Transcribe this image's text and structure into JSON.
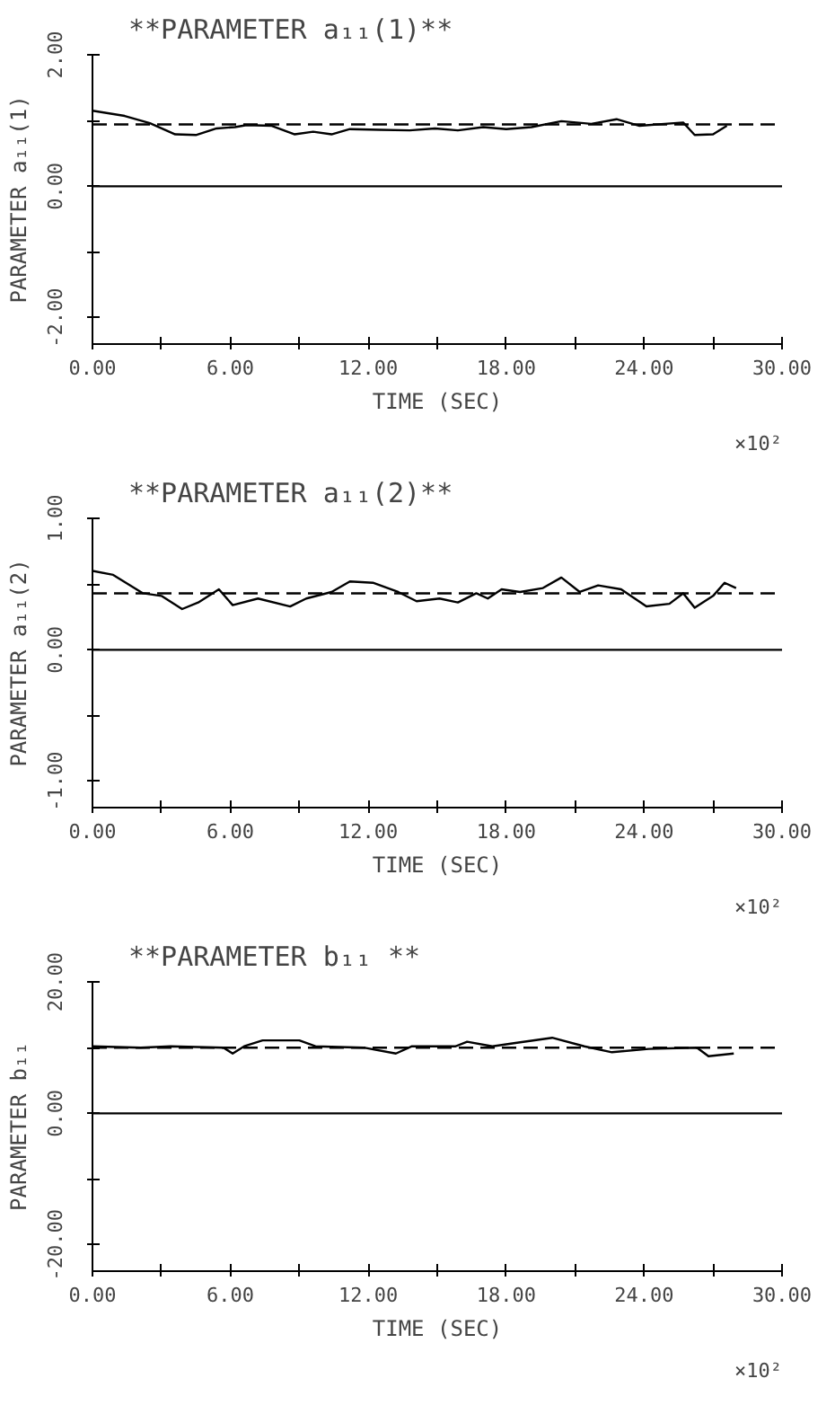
{
  "chart_data": [
    {
      "type": "line",
      "title": "**PARAMETER a₁₁(1)**",
      "xlabel": "TIME (SEC)",
      "ylabel": "PARAMETER a₁₁(1)",
      "annotations": [
        "×10²"
      ],
      "xlim": [
        0,
        30
      ],
      "xticks": [
        {
          "value": 0,
          "label": "0.00"
        },
        {
          "value": 3,
          "label": null
        },
        {
          "value": 6,
          "label": "6.00"
        },
        {
          "value": 9,
          "label": null
        },
        {
          "value": 12,
          "label": "12.00"
        },
        {
          "value": 15,
          "label": null
        },
        {
          "value": 18,
          "label": "18.00"
        },
        {
          "value": 21,
          "label": null
        },
        {
          "value": 24,
          "label": "24.00"
        },
        {
          "value": 27,
          "label": null
        },
        {
          "value": 30,
          "label": "30.00"
        }
      ],
      "ylim": [
        -2.4,
        2
      ],
      "yticks": [
        {
          "value": 2,
          "label": "2.00"
        },
        {
          "value": 1,
          "label": null
        },
        {
          "value": 0,
          "label": "0.00"
        },
        {
          "value": -1,
          "label": null
        },
        {
          "value": -2,
          "label": "-2.00"
        }
      ],
      "grid": false,
      "line_style": "solid",
      "ref_lines": [
        {
          "axis": "y",
          "value": 0,
          "color": "#000000",
          "line_style": "solid"
        },
        {
          "axis": "y",
          "value": 0.94,
          "color": "#000000",
          "line_style": "dashed"
        }
      ],
      "series": [
        {
          "color": "#000000",
          "x": [
            0,
            1.4,
            2.5,
            3.6,
            4.5,
            5.4,
            6.2,
            6.7,
            7.8,
            8.8,
            9.6,
            10.4,
            11.2,
            12.5,
            13.8,
            14.9,
            15.9,
            17,
            18,
            19.1,
            20.4,
            21.7,
            22.8,
            23.8,
            25.7,
            26.2,
            27,
            27.6
          ],
          "values": [
            1.15,
            1.07,
            0.96,
            0.79,
            0.78,
            0.88,
            0.9,
            0.93,
            0.92,
            0.79,
            0.83,
            0.79,
            0.87,
            0.86,
            0.85,
            0.88,
            0.85,
            0.9,
            0.87,
            0.9,
            0.99,
            0.95,
            1.02,
            0.92,
            0.97,
            0.78,
            0.79,
            0.92
          ]
        }
      ]
    },
    {
      "type": "line",
      "title": "**PARAMETER a₁₁(2)**",
      "xlabel": "TIME (SEC)",
      "ylabel": "PARAMETER a₁₁(2)",
      "annotations": [
        "×10²"
      ],
      "xlim": [
        0,
        30
      ],
      "xticks": [
        {
          "value": 0,
          "label": "0.00"
        },
        {
          "value": 3,
          "label": null
        },
        {
          "value": 6,
          "label": "6.00"
        },
        {
          "value": 9,
          "label": null
        },
        {
          "value": 12,
          "label": "12.00"
        },
        {
          "value": 15,
          "label": null
        },
        {
          "value": 18,
          "label": "18.00"
        },
        {
          "value": 21,
          "label": null
        },
        {
          "value": 24,
          "label": "24.00"
        },
        {
          "value": 27,
          "label": null
        },
        {
          "value": 30,
          "label": "30.00"
        }
      ],
      "ylim": [
        -1.2,
        1
      ],
      "yticks": [
        {
          "value": 1,
          "label": "1.00"
        },
        {
          "value": 0.5,
          "label": null
        },
        {
          "value": 0,
          "label": "0.00"
        },
        {
          "value": -0.5,
          "label": null
        },
        {
          "value": -1,
          "label": "-1.00"
        }
      ],
      "grid": false,
      "line_style": "solid",
      "ref_lines": [
        {
          "axis": "y",
          "value": 0,
          "color": "#000000",
          "line_style": "solid"
        },
        {
          "axis": "y",
          "value": 0.43,
          "color": "#000000",
          "line_style": "dashed"
        }
      ],
      "series": [
        {
          "color": "#000000",
          "x": [
            0,
            0.9,
            2.2,
            3,
            3.9,
            4.6,
            5.5,
            6.1,
            7.2,
            8.6,
            9.3,
            10.4,
            11.2,
            12.2,
            13.3,
            14.1,
            15.1,
            15.9,
            16.7,
            17.2,
            17.8,
            18.6,
            19.6,
            20.4,
            21.2,
            22,
            23,
            24.1,
            25.1,
            25.7,
            26.2,
            27,
            27.5,
            28
          ],
          "values": [
            0.6,
            0.57,
            0.43,
            0.41,
            0.31,
            0.36,
            0.46,
            0.34,
            0.39,
            0.33,
            0.39,
            0.44,
            0.52,
            0.51,
            0.44,
            0.37,
            0.39,
            0.36,
            0.43,
            0.39,
            0.46,
            0.44,
            0.47,
            0.55,
            0.44,
            0.49,
            0.46,
            0.33,
            0.35,
            0.43,
            0.32,
            0.41,
            0.51,
            0.47
          ]
        }
      ]
    },
    {
      "type": "line",
      "title": "**PARAMETER b₁₁ **",
      "xlabel": "TIME (SEC)",
      "ylabel": "PARAMETER b₁₁",
      "annotations": [
        "×10²"
      ],
      "xlim": [
        0,
        30
      ],
      "xticks": [
        {
          "value": 0,
          "label": "0.00"
        },
        {
          "value": 3,
          "label": null
        },
        {
          "value": 6,
          "label": "6.00"
        },
        {
          "value": 9,
          "label": null
        },
        {
          "value": 12,
          "label": "12.00"
        },
        {
          "value": 15,
          "label": null
        },
        {
          "value": 18,
          "label": "18.00"
        },
        {
          "value": 21,
          "label": null
        },
        {
          "value": 24,
          "label": "24.00"
        },
        {
          "value": 27,
          "label": null
        },
        {
          "value": 30,
          "label": "30.00"
        }
      ],
      "ylim": [
        -24,
        20
      ],
      "yticks": [
        {
          "value": 20,
          "label": "20.00"
        },
        {
          "value": 10,
          "label": null
        },
        {
          "value": 0,
          "label": "0.00"
        },
        {
          "value": -10,
          "label": null
        },
        {
          "value": -20,
          "label": "-20.00"
        }
      ],
      "grid": false,
      "line_style": "solid",
      "ref_lines": [
        {
          "axis": "y",
          "value": 0,
          "color": "#000000",
          "line_style": "solid"
        },
        {
          "axis": "y",
          "value": 10,
          "color": "#000000",
          "line_style": "dashed"
        }
      ],
      "series": [
        {
          "color": "#000000",
          "x": [
            0,
            2.1,
            3.4,
            5.7,
            6.1,
            6.6,
            7.4,
            9,
            9.7,
            11.8,
            13.2,
            13.9,
            15.8,
            16.3,
            17.4,
            18.4,
            20,
            21.4,
            22.6,
            24.2,
            26.3,
            26.8,
            27.9
          ],
          "values": [
            10.2,
            10,
            10.2,
            10,
            9.1,
            10.2,
            11.1,
            11.1,
            10.2,
            10,
            9.1,
            10.2,
            10.2,
            10.9,
            10.2,
            10.7,
            11.5,
            10.2,
            9.3,
            9.8,
            10,
            8.7,
            9.1
          ]
        }
      ]
    }
  ]
}
